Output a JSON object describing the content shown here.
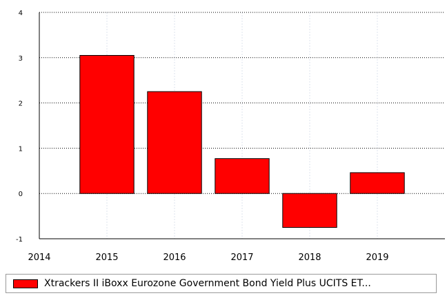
{
  "chart_data": {
    "type": "bar",
    "x_ticks": [
      "2014",
      "2015",
      "2016",
      "2017",
      "2018",
      "2019"
    ],
    "categories": [
      "2015",
      "2016",
      "2017",
      "2018",
      "2019"
    ],
    "series": [
      {
        "name": "Xtrackers II iBoxx Eurozone Government Bond Yield Plus UCITS ET...",
        "values": [
          3.05,
          2.25,
          0.77,
          -0.75,
          0.46
        ]
      }
    ],
    "y_ticks": [
      "4",
      "3",
      "2",
      "1",
      "0",
      "-1"
    ],
    "ylim": [
      -1,
      4
    ],
    "grid": true,
    "legend_position": "bottom"
  },
  "colors": {
    "bar_fill": "#ff0000",
    "bar_stroke": "#000000",
    "grid": "#000000",
    "vertical_grid": "#dde3ee"
  }
}
